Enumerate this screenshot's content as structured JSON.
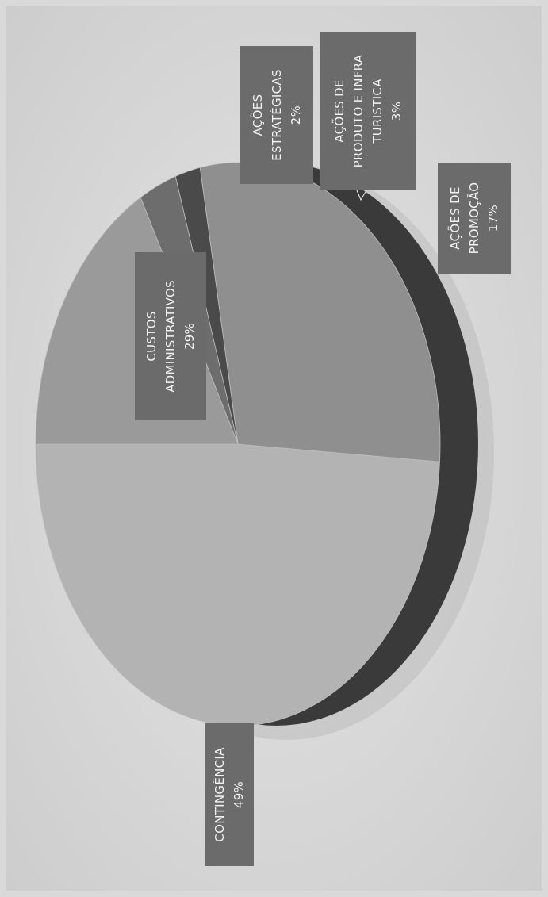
{
  "chart_data": {
    "type": "pie",
    "categories": [
      "CONTINGÊNCIA",
      "CUSTOS ADMINISTRATIVOS",
      "AÇÕES ESTRATÉGICAS",
      "AÇÕES DE PRODUTO E INFRA TURISTICA",
      "AÇÕES DE PROMOÇÃO"
    ],
    "values": [
      49,
      29,
      2,
      3,
      17
    ],
    "value_labels": [
      "49%",
      "29%",
      "2%",
      "3%",
      "17%"
    ],
    "label_lines": [
      [
        "CONTINGÊNCIA"
      ],
      [
        "CUSTOS",
        "ADMINISTRATIVOS"
      ],
      [
        "AÇÕES",
        "ESTRATÉGICAS"
      ],
      [
        "AÇÕES DE",
        "PRODUTO E INFRA",
        "TURISTICA"
      ],
      [
        "AÇÕES DE",
        "PROMOÇÃO"
      ]
    ],
    "colors": [
      "#b3b3b3",
      "#8f8f8f",
      "#4a4a4a",
      "#6d6d6d",
      "#9a9a9a"
    ],
    "label_box_color": "#6b6b6b",
    "style": "3d",
    "orientation": "rotated 90° (scanned page turned sideways)",
    "legend": "none"
  }
}
